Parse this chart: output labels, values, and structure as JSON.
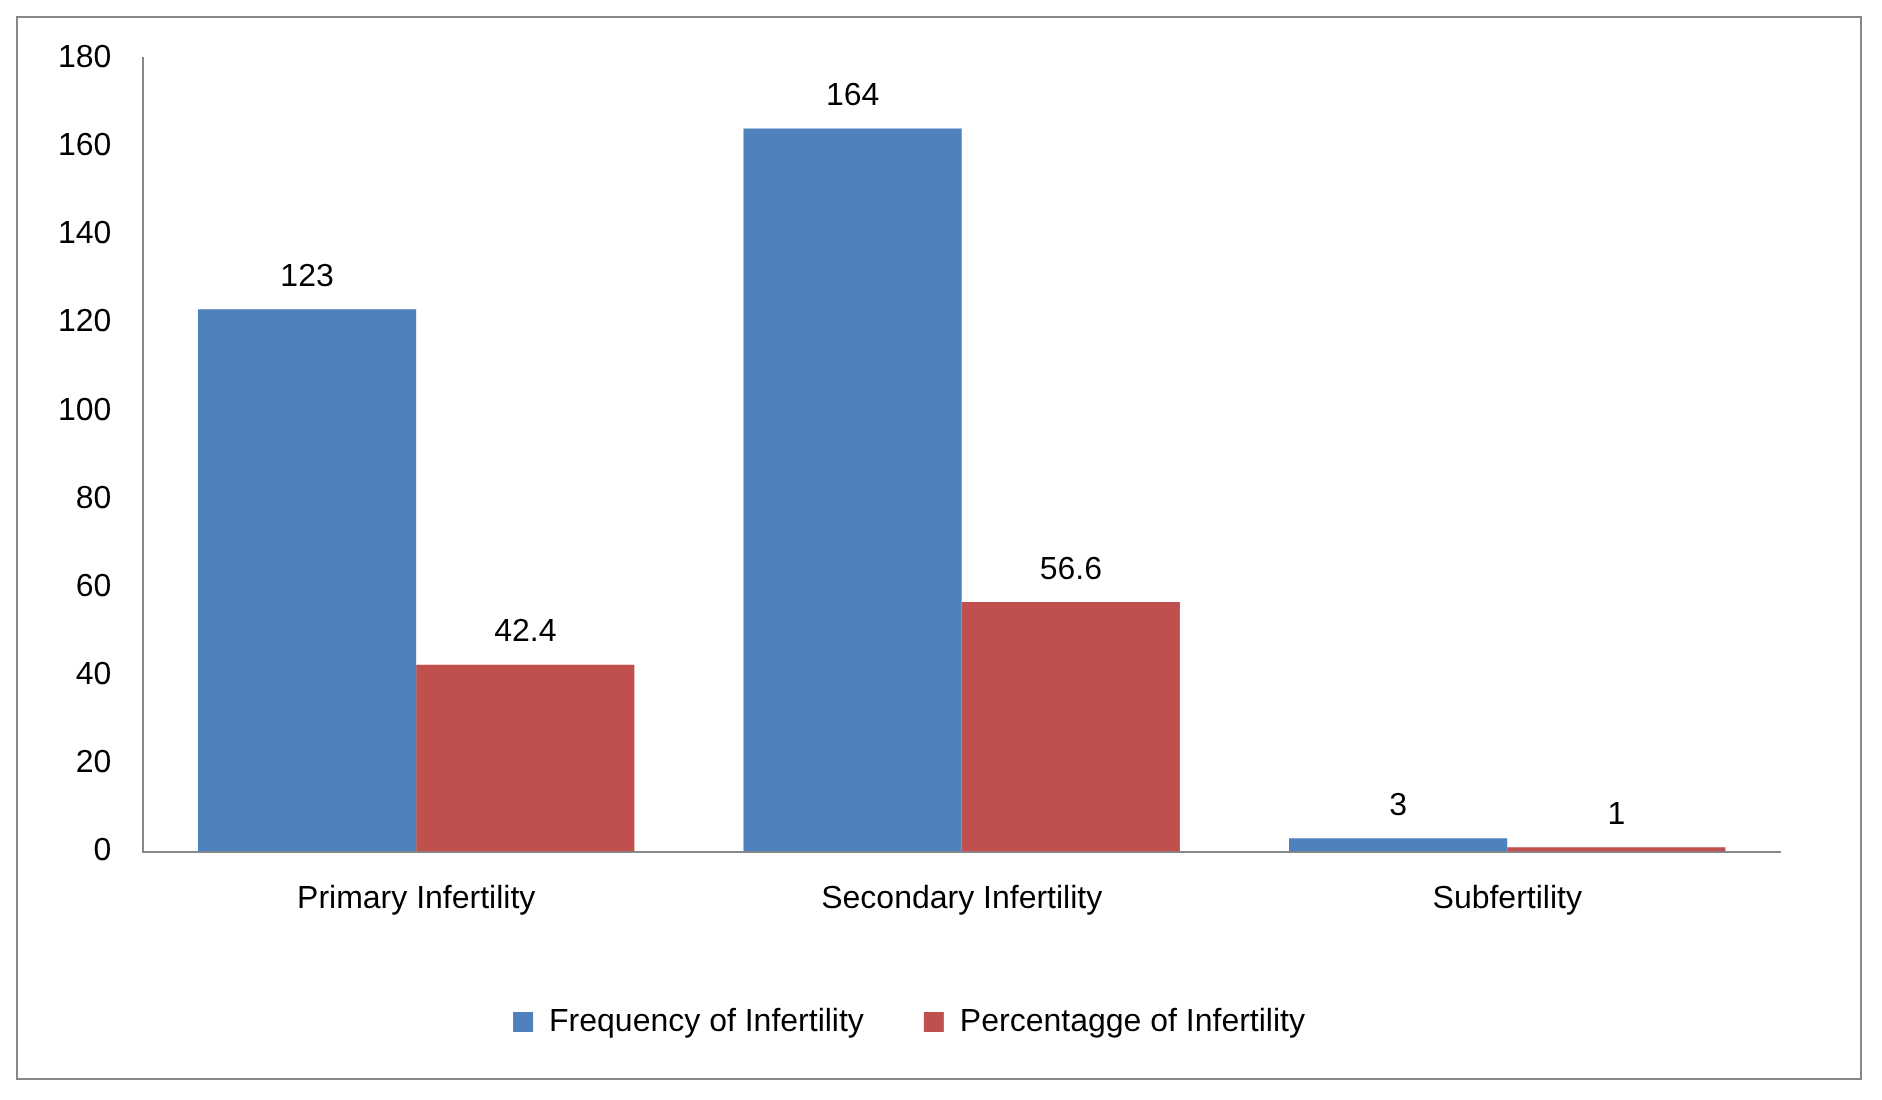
{
  "chart_data": {
    "type": "bar",
    "categories": [
      "Primary Infertility",
      "Secondary Infertility",
      "Subfertility"
    ],
    "series": [
      {
        "name": "Frequency of Infertility",
        "color": "#4f81bd",
        "values": [
          123,
          164,
          3
        ]
      },
      {
        "name": "Percentagge of Infertility",
        "color": "#c0504d",
        "values": [
          42.4,
          56.6,
          1
        ]
      }
    ],
    "ylim": [
      0,
      180
    ],
    "yticks": [
      0,
      20,
      40,
      60,
      80,
      100,
      120,
      140,
      160,
      180
    ],
    "grid": false,
    "legend": "bottom",
    "data_labels": true
  }
}
